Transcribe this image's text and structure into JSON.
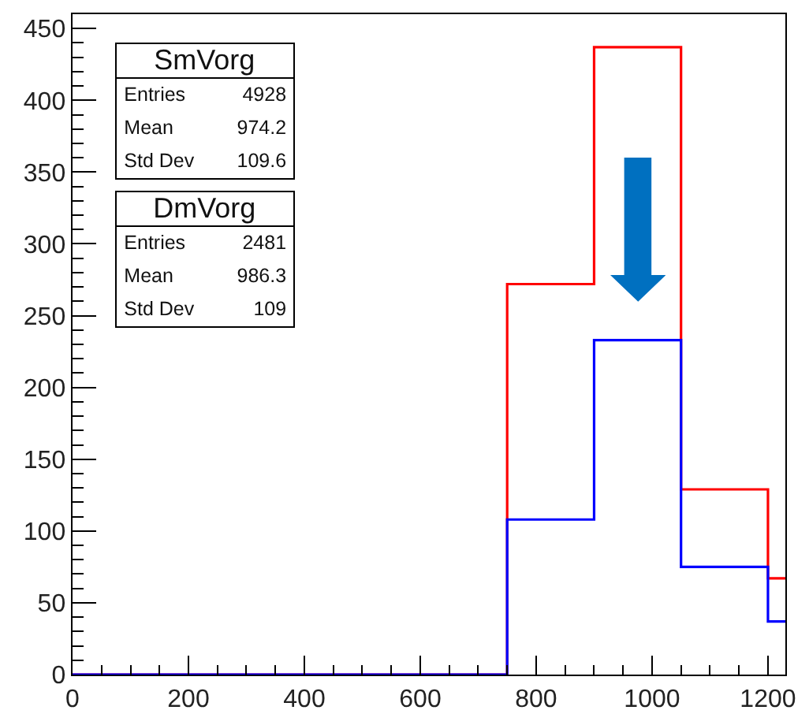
{
  "chart_data": {
    "type": "histogram",
    "bins": [
      0,
      150,
      300,
      450,
      600,
      750,
      900,
      1050,
      1200,
      1230
    ],
    "series": [
      {
        "color": "#ff0000",
        "values": [
          0,
          0,
          0,
          0,
          0,
          272,
          437,
          129,
          67
        ]
      },
      {
        "color": "#0000ff",
        "values": [
          0,
          0,
          0,
          0,
          0,
          108,
          233,
          75,
          37
        ]
      }
    ],
    "xlim": [
      0,
      1230
    ],
    "xticks": [
      0,
      {
        "value": 50,
        "label": null
      },
      {
        "value": 100,
        "label": null
      },
      {
        "value": 150,
        "label": null
      },
      200,
      {
        "value": 250,
        "label": null
      },
      {
        "value": 300,
        "label": null
      },
      {
        "value": 350,
        "label": null
      },
      400,
      {
        "value": 450,
        "label": null
      },
      {
        "value": 500,
        "label": null
      },
      {
        "value": 550,
        "label": null
      },
      600,
      {
        "value": 650,
        "label": null
      },
      {
        "value": 700,
        "label": null
      },
      {
        "value": 750,
        "label": null
      },
      800,
      {
        "value": 850,
        "label": null
      },
      {
        "value": 900,
        "label": null
      },
      {
        "value": 950,
        "label": null
      },
      1000,
      {
        "value": 1050,
        "label": null
      },
      {
        "value": 1100,
        "label": null
      },
      {
        "value": 1150,
        "label": null
      },
      1200
    ],
    "ylim": [
      0,
      460
    ],
    "yticks": [
      0,
      {
        "value": 10,
        "label": null
      },
      {
        "value": 20,
        "label": null
      },
      {
        "value": 30,
        "label": null
      },
      {
        "value": 40,
        "label": null
      },
      50,
      {
        "value": 60,
        "label": null
      },
      {
        "value": 70,
        "label": null
      },
      {
        "value": 80,
        "label": null
      },
      {
        "value": 90,
        "label": null
      },
      100,
      {
        "value": 110,
        "label": null
      },
      {
        "value": 120,
        "label": null
      },
      {
        "value": 130,
        "label": null
      },
      {
        "value": 140,
        "label": null
      },
      150,
      {
        "value": 160,
        "label": null
      },
      {
        "value": 170,
        "label": null
      },
      {
        "value": 180,
        "label": null
      },
      {
        "value": 190,
        "label": null
      },
      200,
      {
        "value": 210,
        "label": null
      },
      {
        "value": 220,
        "label": null
      },
      {
        "value": 230,
        "label": null
      },
      {
        "value": 240,
        "label": null
      },
      250,
      {
        "value": 260,
        "label": null
      },
      {
        "value": 270,
        "label": null
      },
      {
        "value": 280,
        "label": null
      },
      {
        "value": 290,
        "label": null
      },
      300,
      {
        "value": 310,
        "label": null
      },
      {
        "value": 320,
        "label": null
      },
      {
        "value": 330,
        "label": null
      },
      {
        "value": 340,
        "label": null
      },
      350,
      {
        "value": 360,
        "label": null
      },
      {
        "value": 370,
        "label": null
      },
      {
        "value": 380,
        "label": null
      },
      {
        "value": 390,
        "label": null
      },
      400,
      {
        "value": 410,
        "label": null
      },
      {
        "value": 420,
        "label": null
      },
      {
        "value": 430,
        "label": null
      },
      {
        "value": 440,
        "label": null
      },
      450
    ],
    "annotations": [
      "SmVorg\nEntries 4928\nMean 974.2\nStd Dev 109.6",
      "DmVorg\nEntries 2481\nMean 986.3\nStd Dev 109"
    ]
  }
}
